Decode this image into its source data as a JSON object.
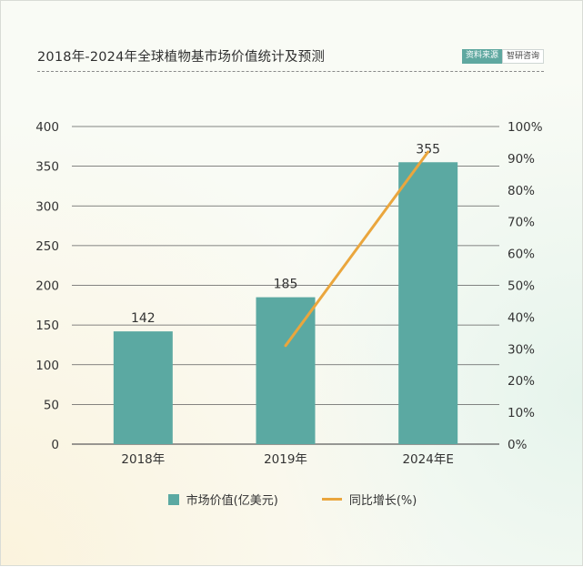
{
  "header": {
    "title": "2018年-2024年全球植物基市场价值统计及预测",
    "source_label": "资料来源",
    "source_name": "智研咨询"
  },
  "colors": {
    "bar": "#5ba9a2",
    "line": "#eaa63d",
    "grid": "#5d5d5d"
  },
  "chart_data": {
    "type": "bar",
    "title": "2018年-2024年全球植物基市场价值统计及预测",
    "categories": [
      "2018年",
      "2019年",
      "2024年E"
    ],
    "series": [
      {
        "name": "市场价值(亿美元)",
        "type": "bar",
        "axis": "left",
        "values": [
          142,
          185,
          355
        ]
      },
      {
        "name": "同比增长(%)",
        "type": "line",
        "axis": "right",
        "values": [
          null,
          31,
          92
        ]
      }
    ],
    "data_labels": [
      "142",
      "185",
      "355"
    ],
    "ylim": [
      0,
      400
    ],
    "y_ticks": [
      "0",
      "50",
      "100",
      "150",
      "200",
      "250",
      "300",
      "350",
      "400"
    ],
    "y2lim": [
      0,
      100
    ],
    "y2_ticks": [
      "0%",
      "10%",
      "20%",
      "30%",
      "40%",
      "50%",
      "60%",
      "70%",
      "80%",
      "90%",
      "100%"
    ],
    "grid": true,
    "legend_position": "bottom"
  }
}
